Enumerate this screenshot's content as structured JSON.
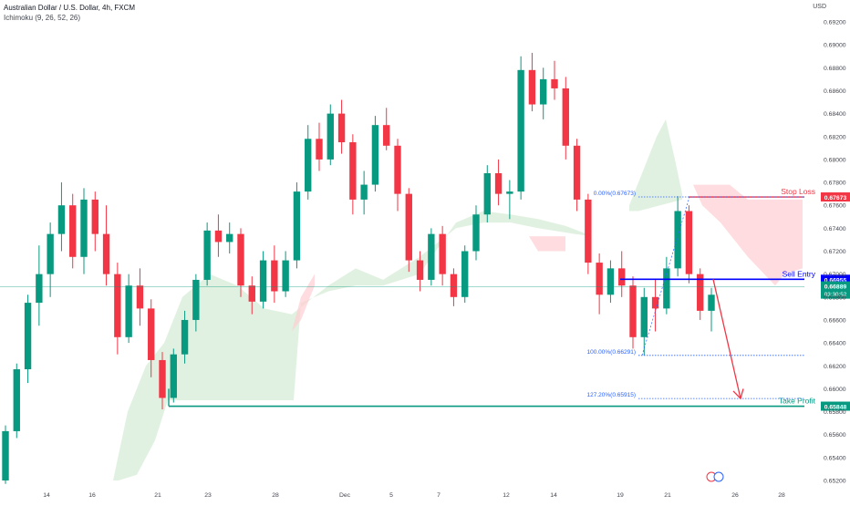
{
  "header": {
    "title": "Australian Dollar / U.S. Dollar, 4h, FXCM",
    "indicator": "Ichimoku (9, 26, 52, 26)",
    "currency": "USD"
  },
  "chart_data": {
    "type": "candlestick",
    "symbol": "AUDUSD",
    "timeframe": "4h",
    "y_axis": {
      "ticks": [
        "0.69200",
        "0.69000",
        "0.68800",
        "0.68600",
        "0.68400",
        "0.68200",
        "0.68000",
        "0.67800",
        "0.67600",
        "0.67400",
        "0.67200",
        "0.67000",
        "0.66800",
        "0.66600",
        "0.66400",
        "0.66200",
        "0.66000",
        "0.65800",
        "0.65600",
        "0.65400",
        "0.65200"
      ],
      "range": [
        0.6513,
        0.6932
      ]
    },
    "x_axis": {
      "ticks": [
        "14",
        "16",
        "21",
        "23",
        "28",
        "Dec",
        "5",
        "7",
        "12",
        "14",
        "19",
        "21",
        "26",
        "28"
      ]
    },
    "candles": [
      {
        "o": 0.652,
        "h": 0.6568,
        "l": 0.6517,
        "c": 0.6563
      },
      {
        "o": 0.6563,
        "h": 0.6622,
        "l": 0.6557,
        "c": 0.6617
      },
      {
        "o": 0.6617,
        "h": 0.6682,
        "l": 0.6605,
        "c": 0.6675
      },
      {
        "o": 0.6675,
        "h": 0.6725,
        "l": 0.6655,
        "c": 0.67
      },
      {
        "o": 0.67,
        "h": 0.6745,
        "l": 0.668,
        "c": 0.6735
      },
      {
        "o": 0.6735,
        "h": 0.678,
        "l": 0.672,
        "c": 0.676
      },
      {
        "o": 0.676,
        "h": 0.677,
        "l": 0.6705,
        "c": 0.6715
      },
      {
        "o": 0.6715,
        "h": 0.6775,
        "l": 0.67,
        "c": 0.6765
      },
      {
        "o": 0.6765,
        "h": 0.6772,
        "l": 0.672,
        "c": 0.6735
      },
      {
        "o": 0.6735,
        "h": 0.676,
        "l": 0.669,
        "c": 0.67
      },
      {
        "o": 0.67,
        "h": 0.671,
        "l": 0.663,
        "c": 0.6645
      },
      {
        "o": 0.6645,
        "h": 0.67,
        "l": 0.664,
        "c": 0.669
      },
      {
        "o": 0.669,
        "h": 0.6705,
        "l": 0.6655,
        "c": 0.667
      },
      {
        "o": 0.667,
        "h": 0.6678,
        "l": 0.661,
        "c": 0.6625
      },
      {
        "o": 0.6625,
        "h": 0.6632,
        "l": 0.6582,
        "c": 0.6592
      },
      {
        "o": 0.6592,
        "h": 0.6635,
        "l": 0.6588,
        "c": 0.663
      },
      {
        "o": 0.663,
        "h": 0.6668,
        "l": 0.6622,
        "c": 0.666
      },
      {
        "o": 0.666,
        "h": 0.67,
        "l": 0.665,
        "c": 0.6695
      },
      {
        "o": 0.6695,
        "h": 0.6745,
        "l": 0.669,
        "c": 0.6738
      },
      {
        "o": 0.6738,
        "h": 0.6752,
        "l": 0.6715,
        "c": 0.6728
      },
      {
        "o": 0.6728,
        "h": 0.6745,
        "l": 0.6718,
        "c": 0.6735
      },
      {
        "o": 0.6735,
        "h": 0.674,
        "l": 0.668,
        "c": 0.669
      },
      {
        "o": 0.669,
        "h": 0.6698,
        "l": 0.6665,
        "c": 0.6676
      },
      {
        "o": 0.6676,
        "h": 0.672,
        "l": 0.667,
        "c": 0.6712
      },
      {
        "o": 0.6712,
        "h": 0.6725,
        "l": 0.6675,
        "c": 0.6685
      },
      {
        "o": 0.6685,
        "h": 0.672,
        "l": 0.668,
        "c": 0.6712
      },
      {
        "o": 0.6712,
        "h": 0.678,
        "l": 0.6705,
        "c": 0.6772
      },
      {
        "o": 0.6772,
        "h": 0.683,
        "l": 0.6765,
        "c": 0.6818
      },
      {
        "o": 0.6818,
        "h": 0.6832,
        "l": 0.679,
        "c": 0.68
      },
      {
        "o": 0.68,
        "h": 0.6848,
        "l": 0.6795,
        "c": 0.684
      },
      {
        "o": 0.684,
        "h": 0.6852,
        "l": 0.6805,
        "c": 0.6815
      },
      {
        "o": 0.6815,
        "h": 0.6822,
        "l": 0.6752,
        "c": 0.6765
      },
      {
        "o": 0.6765,
        "h": 0.679,
        "l": 0.6752,
        "c": 0.6778
      },
      {
        "o": 0.6778,
        "h": 0.6838,
        "l": 0.6772,
        "c": 0.683
      },
      {
        "o": 0.683,
        "h": 0.6845,
        "l": 0.6808,
        "c": 0.6812
      },
      {
        "o": 0.6812,
        "h": 0.6818,
        "l": 0.6755,
        "c": 0.677
      },
      {
        "o": 0.677,
        "h": 0.6775,
        "l": 0.6702,
        "c": 0.6712
      },
      {
        "o": 0.6712,
        "h": 0.672,
        "l": 0.6685,
        "c": 0.6695
      },
      {
        "o": 0.6695,
        "h": 0.674,
        "l": 0.669,
        "c": 0.6735
      },
      {
        "o": 0.6735,
        "h": 0.6742,
        "l": 0.669,
        "c": 0.67
      },
      {
        "o": 0.67,
        "h": 0.6705,
        "l": 0.6672,
        "c": 0.668
      },
      {
        "o": 0.668,
        "h": 0.6725,
        "l": 0.6675,
        "c": 0.672
      },
      {
        "o": 0.672,
        "h": 0.676,
        "l": 0.6712,
        "c": 0.6752
      },
      {
        "o": 0.6752,
        "h": 0.6795,
        "l": 0.6745,
        "c": 0.6788
      },
      {
        "o": 0.6788,
        "h": 0.68,
        "l": 0.676,
        "c": 0.677
      },
      {
        "o": 0.677,
        "h": 0.6782,
        "l": 0.6748,
        "c": 0.6772
      },
      {
        "o": 0.6772,
        "h": 0.689,
        "l": 0.6765,
        "c": 0.6878
      },
      {
        "o": 0.6878,
        "h": 0.6893,
        "l": 0.6842,
        "c": 0.6848
      },
      {
        "o": 0.6848,
        "h": 0.688,
        "l": 0.6835,
        "c": 0.687
      },
      {
        "o": 0.687,
        "h": 0.6886,
        "l": 0.6852,
        "c": 0.6862
      },
      {
        "o": 0.6862,
        "h": 0.6872,
        "l": 0.68,
        "c": 0.6812
      },
      {
        "o": 0.6812,
        "h": 0.6818,
        "l": 0.6755,
        "c": 0.6765
      },
      {
        "o": 0.6765,
        "h": 0.677,
        "l": 0.67,
        "c": 0.671
      },
      {
        "o": 0.671,
        "h": 0.6718,
        "l": 0.6665,
        "c": 0.6682
      },
      {
        "o": 0.6682,
        "h": 0.6712,
        "l": 0.6675,
        "c": 0.6705
      },
      {
        "o": 0.6705,
        "h": 0.672,
        "l": 0.668,
        "c": 0.669
      },
      {
        "o": 0.669,
        "h": 0.6698,
        "l": 0.6635,
        "c": 0.6645
      },
      {
        "o": 0.6645,
        "h": 0.6688,
        "l": 0.6629,
        "c": 0.668
      },
      {
        "o": 0.668,
        "h": 0.6695,
        "l": 0.665,
        "c": 0.667
      },
      {
        "o": 0.667,
        "h": 0.6715,
        "l": 0.6665,
        "c": 0.6705
      },
      {
        "o": 0.6705,
        "h": 0.6768,
        "l": 0.6698,
        "c": 0.6755
      },
      {
        "o": 0.6755,
        "h": 0.676,
        "l": 0.6692,
        "c": 0.67
      },
      {
        "o": 0.67,
        "h": 0.6705,
        "l": 0.666,
        "c": 0.6668
      },
      {
        "o": 0.6668,
        "h": 0.6688,
        "l": 0.665,
        "c": 0.6682
      }
    ],
    "annotations": [
      {
        "type": "level",
        "label": "Stop Loss",
        "price": 0.67673,
        "price_label": "0.67673",
        "color": "#f23645"
      },
      {
        "type": "level",
        "label": "Sell Entry",
        "price": 0.66955,
        "price_label": "0.66955",
        "color": "#0000ff"
      },
      {
        "type": "level",
        "label": "Take Profit",
        "price": 0.65848,
        "price_label": "0.65848",
        "color": "#089981"
      },
      {
        "type": "fib",
        "label": "0.00%(0.67673)",
        "price": 0.67673
      },
      {
        "type": "fib",
        "label": "100.00%(0.66291)",
        "price": 0.66291
      },
      {
        "type": "fib",
        "label": "127.20%(0.65915)",
        "price": 0.65915
      }
    ],
    "current_price": {
      "value": "0.66889",
      "countdown": "03:30:52",
      "price": 0.66889
    },
    "colors": {
      "up": "#089981",
      "down": "#f23645",
      "cloud_bull": "#c8e6c9",
      "cloud_bear": "#ffcdd2",
      "entry": "#0000ff",
      "fib": "#2962ff",
      "stop": "#f23645",
      "profit": "#089981"
    },
    "grid": false
  }
}
